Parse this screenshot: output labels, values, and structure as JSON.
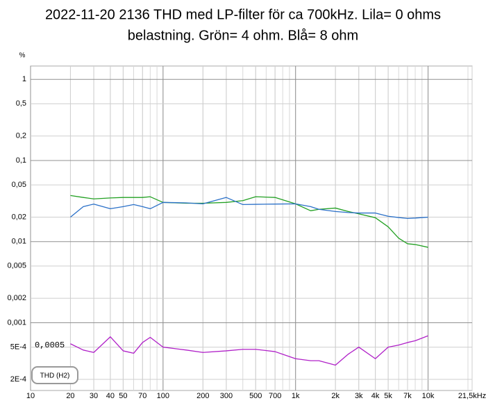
{
  "chart_data": {
    "type": "line",
    "title": [
      "2022-11-20 2136 THD med LP-filter för ca 700kHz. Lila= 0 ohms",
      "belastning. Grön= 4 ohm. Blå= 8 ohm"
    ],
    "ylabel": "%",
    "x": [
      20,
      25,
      30,
      40,
      50,
      60,
      70,
      80,
      100,
      150,
      200,
      300,
      400,
      500,
      700,
      1000,
      1300,
      1500,
      2000,
      2500,
      3000,
      4000,
      5000,
      6000,
      7000,
      8000,
      10000
    ],
    "series": [
      {
        "color": "#22a022",
        "values": [
          0.037,
          0.035,
          0.0336,
          0.0345,
          0.035,
          0.035,
          0.035,
          0.0357,
          0.0304,
          0.0297,
          0.0297,
          0.0304,
          0.032,
          0.0357,
          0.035,
          0.0292,
          0.024,
          0.025,
          0.0259,
          0.0235,
          0.022,
          0.0197,
          0.0152,
          0.011,
          0.0094,
          0.0092,
          0.0085
        ]
      },
      {
        "color": "#2a70c8",
        "values": [
          0.02,
          0.027,
          0.029,
          0.0254,
          0.027,
          0.0286,
          0.027,
          0.0254,
          0.0304,
          0.03,
          0.0292,
          0.035,
          0.0286,
          0.0288,
          0.029,
          0.0292,
          0.027,
          0.025,
          0.0235,
          0.0228,
          0.0225,
          0.0225,
          0.0205,
          0.0198,
          0.0193,
          0.0195,
          0.02
        ]
      },
      {
        "color": "#b020c8",
        "values": [
          0.00055,
          0.00046,
          0.00043,
          0.00067,
          0.00045,
          0.00042,
          0.00057,
          0.00066,
          0.0005,
          0.00046,
          0.00043,
          0.00045,
          0.00047,
          0.00047,
          0.00044,
          0.00036,
          0.00034,
          0.00034,
          0.0003,
          0.00041,
          0.0005,
          0.00036,
          0.0005,
          0.00053,
          0.00057,
          0.0006,
          0.00069
        ]
      }
    ],
    "xlog": true,
    "ylog": true,
    "grid": true,
    "minor_grid": true,
    "xlim": [
      10,
      21500
    ],
    "xticks": [
      10,
      20,
      30,
      40,
      50,
      70,
      100,
      200,
      300,
      500,
      700,
      {
        "value": 1000,
        "label": "1k"
      },
      {
        "value": 2000,
        "label": "2k"
      },
      {
        "value": 3000,
        "label": "3k"
      },
      {
        "value": 4000,
        "label": "4k"
      },
      {
        "value": 5000,
        "label": "5k"
      },
      {
        "value": 7000,
        "label": "7k"
      },
      {
        "value": 10000,
        "label": "10k"
      },
      {
        "value": 21500,
        "label": "21,5kHz"
      }
    ],
    "ylim": [
      0.000146,
      1.46
    ],
    "yticks": [
      1,
      {
        "value": 0.5,
        "label": "0,5"
      },
      {
        "value": 0.2,
        "label": "0,2"
      },
      {
        "value": 0.1,
        "label": "0,1"
      },
      {
        "value": 0.05,
        "label": "0,05"
      },
      {
        "value": 0.02,
        "label": "0,02"
      },
      {
        "value": 0.01,
        "label": "0,01"
      },
      {
        "value": 0.005,
        "label": "0,005"
      },
      {
        "value": 0.002,
        "label": "0,002"
      },
      {
        "value": 0.001,
        "label": "0,001"
      },
      {
        "value": 0.0005,
        "label": "5E-4"
      },
      {
        "value": 0.0002,
        "label": "2E-4"
      }
    ],
    "annotation": "0,0005",
    "measurement_label": "THD (H2)"
  }
}
